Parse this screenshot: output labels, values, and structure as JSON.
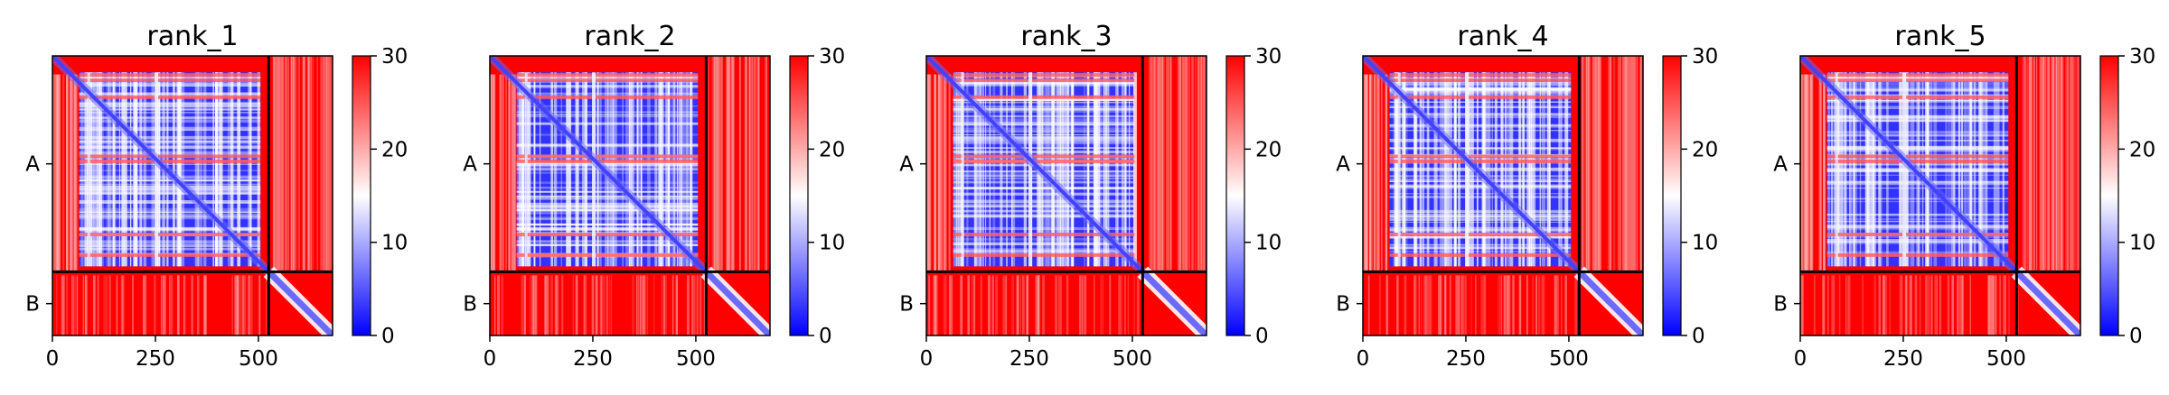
{
  "chart_data": [
    {
      "type": "heatmap",
      "title": "rank_1",
      "xlabel": "",
      "ylabel": "",
      "xlim": [
        0,
        680
      ],
      "x_ticks": [
        0,
        250,
        500
      ],
      "y_tick_labels": [
        "A",
        "B"
      ],
      "chain_boundary": 525,
      "colorbar": {
        "range": [
          0,
          30
        ],
        "ticks": [
          0,
          10,
          20,
          30
        ],
        "colormap": "bwr",
        "colors": [
          "#0000ff",
          "#ffffff",
          "#ff0000"
        ]
      },
      "blocks": {
        "A_A": "low",
        "A_B": "high",
        "B_A": "high",
        "B_B": "high-off-diagonal"
      }
    },
    {
      "type": "heatmap",
      "title": "rank_2",
      "xlabel": "",
      "ylabel": "",
      "xlim": [
        0,
        680
      ],
      "x_ticks": [
        0,
        250,
        500
      ],
      "y_tick_labels": [
        "A",
        "B"
      ],
      "chain_boundary": 525,
      "colorbar": {
        "range": [
          0,
          30
        ],
        "ticks": [
          0,
          10,
          20,
          30
        ],
        "colormap": "bwr",
        "colors": [
          "#0000ff",
          "#ffffff",
          "#ff0000"
        ]
      },
      "blocks": {
        "A_A": "low",
        "A_B": "high",
        "B_A": "high",
        "B_B": "high-off-diagonal"
      }
    },
    {
      "type": "heatmap",
      "title": "rank_3",
      "xlabel": "",
      "ylabel": "",
      "xlim": [
        0,
        680
      ],
      "x_ticks": [
        0,
        250,
        500
      ],
      "y_tick_labels": [
        "A",
        "B"
      ],
      "chain_boundary": 525,
      "colorbar": {
        "range": [
          0,
          30
        ],
        "ticks": [
          0,
          10,
          20,
          30
        ],
        "colormap": "bwr",
        "colors": [
          "#0000ff",
          "#ffffff",
          "#ff0000"
        ]
      },
      "blocks": {
        "A_A": "low",
        "A_B": "high",
        "B_A": "high",
        "B_B": "high-off-diagonal"
      }
    },
    {
      "type": "heatmap",
      "title": "rank_4",
      "xlabel": "",
      "ylabel": "",
      "xlim": [
        0,
        680
      ],
      "x_ticks": [
        0,
        250,
        500
      ],
      "y_tick_labels": [
        "A",
        "B"
      ],
      "chain_boundary": 525,
      "colorbar": {
        "range": [
          0,
          30
        ],
        "ticks": [
          0,
          10,
          20,
          30
        ],
        "colormap": "bwr",
        "colors": [
          "#0000ff",
          "#ffffff",
          "#ff0000"
        ]
      },
      "blocks": {
        "A_A": "low",
        "A_B": "high",
        "B_A": "high",
        "B_B": "high-off-diagonal"
      }
    },
    {
      "type": "heatmap",
      "title": "rank_5",
      "xlabel": "",
      "ylabel": "",
      "xlim": [
        0,
        680
      ],
      "x_ticks": [
        0,
        250,
        500
      ],
      "y_tick_labels": [
        "A",
        "B"
      ],
      "chain_boundary": 525,
      "colorbar": {
        "range": [
          0,
          30
        ],
        "ticks": [
          0,
          10,
          20,
          30
        ],
        "colormap": "bwr",
        "colors": [
          "#0000ff",
          "#ffffff",
          "#ff0000"
        ]
      },
      "blocks": {
        "A_A": "low",
        "A_B": "high",
        "B_A": "high",
        "B_B": "high-off-diagonal"
      }
    }
  ]
}
